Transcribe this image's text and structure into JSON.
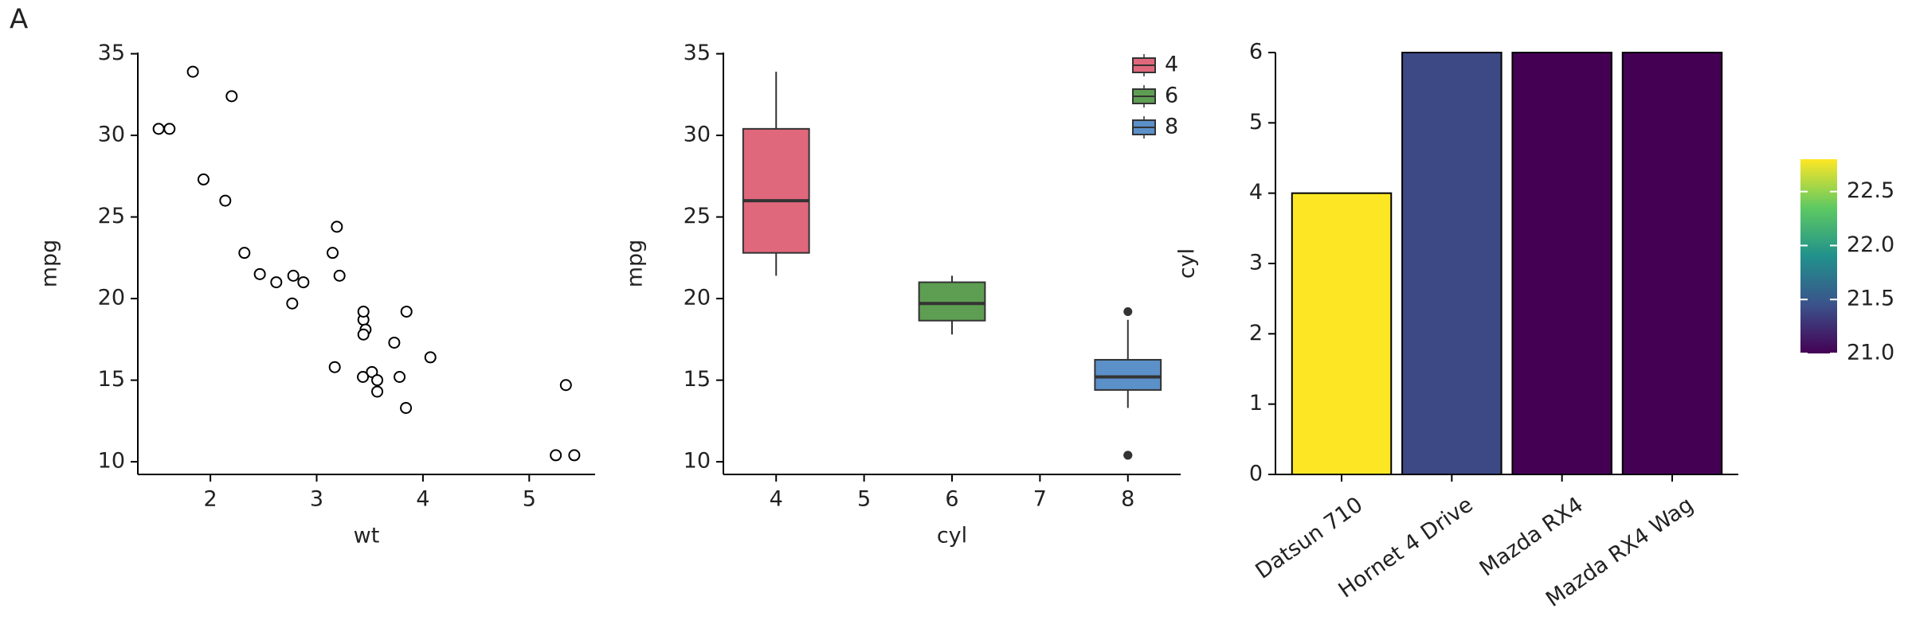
{
  "panel_label": "A",
  "chart_data": [
    {
      "type": "scatter",
      "x_label": "wt",
      "y_label": "mpg",
      "x": [
        2.62,
        2.875,
        2.32,
        3.215,
        3.44,
        3.46,
        3.57,
        3.19,
        3.15,
        3.44,
        3.44,
        4.07,
        3.73,
        3.78,
        5.25,
        5.424,
        5.345,
        2.2,
        1.615,
        1.835,
        2.465,
        3.52,
        3.435,
        3.84,
        3.845,
        1.935,
        2.14,
        1.513,
        3.17,
        2.77,
        3.57,
        2.78
      ],
      "y": [
        21.0,
        21.0,
        22.8,
        21.4,
        18.7,
        18.1,
        14.3,
        24.4,
        22.8,
        19.2,
        17.8,
        16.4,
        17.3,
        15.2,
        10.4,
        10.4,
        14.7,
        32.4,
        30.4,
        33.9,
        21.5,
        15.5,
        15.2,
        13.3,
        19.2,
        27.3,
        26.0,
        30.4,
        15.8,
        19.7,
        15.0,
        21.4
      ],
      "xlim": [
        1.317,
        5.62
      ],
      "xticks": [
        2,
        3,
        4,
        5
      ],
      "ylim": [
        9.225,
        35.075
      ],
      "yticks": [
        10,
        15,
        20,
        25,
        30,
        35
      ]
    },
    {
      "type": "box",
      "x_label": "cyl",
      "y_label": "mpg",
      "legend": "top-right",
      "groups": [
        {
          "name": "4",
          "x": 4,
          "color": "#e0687c",
          "min": 21.4,
          "q1": 22.8,
          "median": 26.0,
          "q3": 30.4,
          "max": 33.9,
          "outliers": []
        },
        {
          "name": "6",
          "x": 6,
          "color": "#5e9e52",
          "min": 17.8,
          "q1": 18.65,
          "median": 19.7,
          "q3": 21.0,
          "max": 21.4,
          "outliers": []
        },
        {
          "name": "8",
          "x": 8,
          "color": "#5b90c8",
          "min": 13.3,
          "q1": 14.4,
          "median": 15.2,
          "q3": 16.25,
          "max": 18.7,
          "outliers": [
            10.4,
            10.4,
            19.2
          ]
        }
      ],
      "xlim": [
        3.4,
        8.6
      ],
      "xticks": [
        4,
        5,
        6,
        7,
        8
      ],
      "ylim": [
        9.225,
        35.075
      ],
      "yticks": [
        10,
        15,
        20,
        25,
        30,
        35
      ]
    },
    {
      "type": "bar",
      "y_label": "cyl",
      "categories": [
        "Datsun 710",
        "Hornet 4 Drive",
        "Mazda RX4",
        "Mazda RX4 Wag"
      ],
      "values": [
        4,
        6,
        6,
        6
      ],
      "fill_values": [
        22.8,
        21.4,
        21.0,
        21.0
      ],
      "ylim": [
        0,
        6
      ],
      "yticks": [
        0,
        1,
        2,
        3,
        4,
        5,
        6
      ],
      "colorbar": {
        "lim": [
          21.0,
          22.8
        ],
        "colors": [
          "#440154",
          "#3b528b",
          "#21918c",
          "#5ec962",
          "#fde725"
        ],
        "ticks": [
          {
            "value": 21.0,
            "label": "21.0"
          },
          {
            "value": 21.5,
            "label": "21.5"
          },
          {
            "value": 22.0,
            "label": "22.0"
          },
          {
            "value": 22.5,
            "label": "22.5"
          }
        ]
      }
    }
  ]
}
